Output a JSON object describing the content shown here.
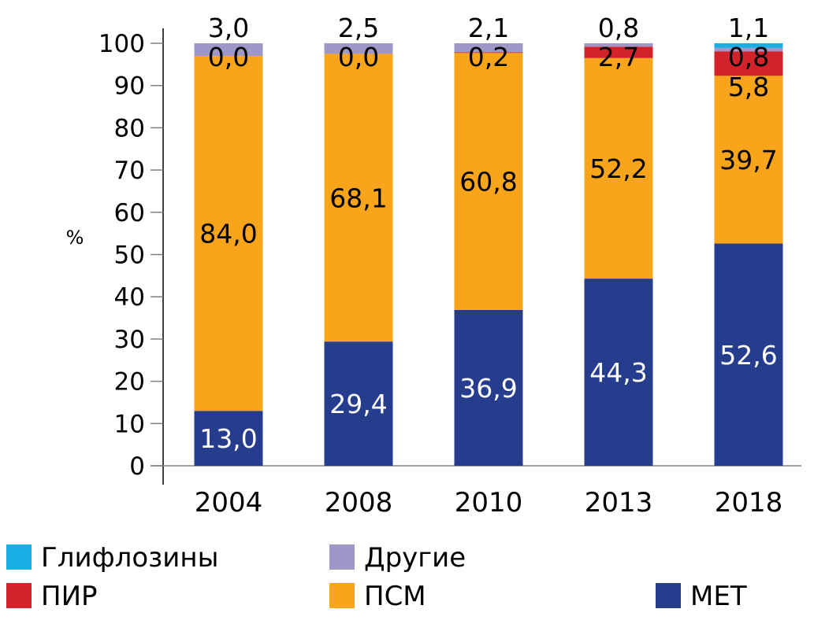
{
  "chart_data": {
    "type": "bar",
    "stacked": true,
    "title": "",
    "xlabel": "",
    "ylabel": "%",
    "ylim": [
      0,
      100
    ],
    "yticks": [
      0,
      10,
      20,
      30,
      40,
      50,
      60,
      70,
      80,
      90,
      100
    ],
    "categories": [
      "2004",
      "2008",
      "2010",
      "2013",
      "2018"
    ],
    "series": [
      {
        "name": "МЕТ",
        "color": "#263d8e",
        "values": [
          13.0,
          29.4,
          36.9,
          44.3,
          52.6
        ],
        "labels": [
          "13,0",
          "29,4",
          "36,9",
          "44,3",
          "52,6"
        ]
      },
      {
        "name": "ПСМ",
        "color": "#f8a51b",
        "values": [
          84.0,
          68.1,
          60.8,
          52.2,
          39.7
        ],
        "labels": [
          "84,0",
          "68,1",
          "60,8",
          "52,2",
          "39,7"
        ]
      },
      {
        "name": "ПИР",
        "color": "#d2232a",
        "values": [
          0.0,
          0.0,
          0.2,
          2.7,
          5.8
        ],
        "labels": [
          "0,0",
          "0,0",
          "0,2",
          "2,7",
          "5,8"
        ]
      },
      {
        "name": "Другие",
        "color": "#9e98c9",
        "values": [
          3.0,
          2.5,
          2.1,
          0.8,
          0.8
        ],
        "labels": [
          "3,0",
          "2,5",
          "2,1",
          "0,8",
          "0,8"
        ]
      },
      {
        "name": "Глифлозины",
        "color": "#1aaee5",
        "values": [
          0,
          0,
          0,
          0,
          1.1
        ],
        "labels": [
          "",
          "",
          "",
          "",
          "1,1"
        ]
      }
    ],
    "legend": {
      "placement": "bottom",
      "order": [
        "Глифлозины",
        "Другие",
        "ПИР",
        "ПСМ",
        "МЕТ"
      ]
    },
    "grid": false
  }
}
